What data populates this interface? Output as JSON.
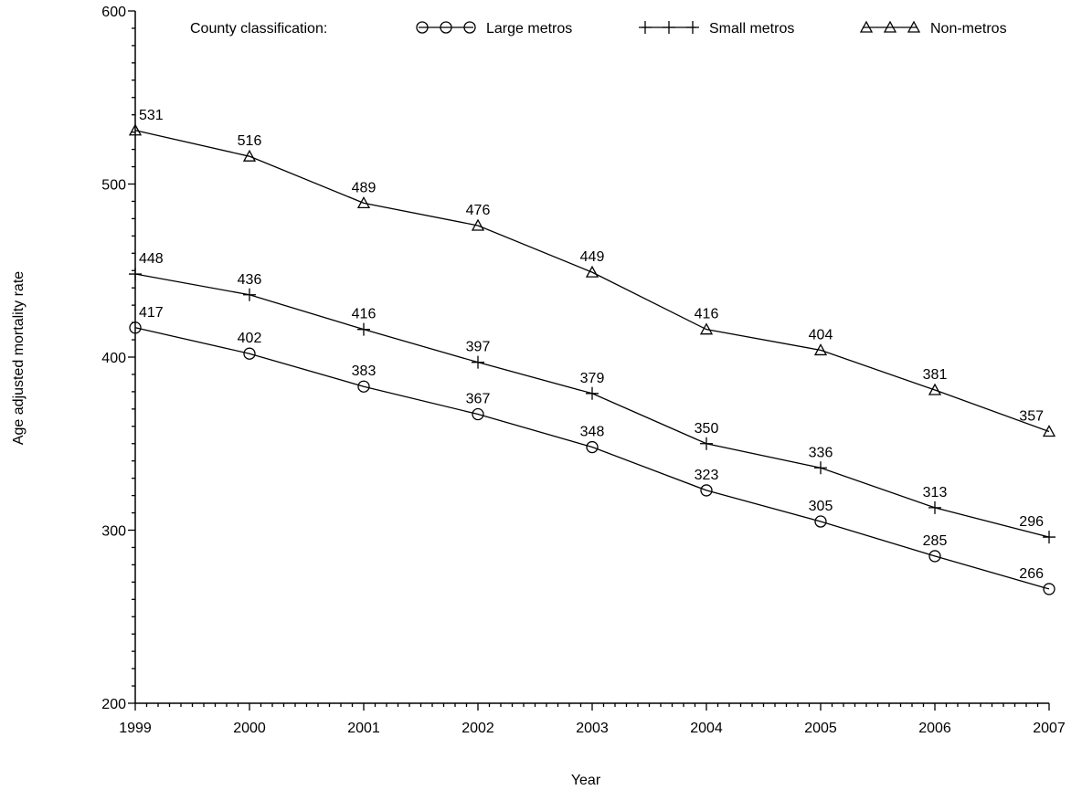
{
  "chart_data": {
    "type": "line",
    "title": "",
    "xlabel": "Year",
    "ylabel": "Age adjusted mortality rate",
    "x": [
      "1999",
      "2000",
      "2001",
      "2002",
      "2003",
      "2004",
      "2005",
      "2006",
      "2007"
    ],
    "ylim": [
      200,
      600
    ],
    "yticks": [
      "200",
      "300",
      "400",
      "500",
      "600"
    ],
    "grid": false,
    "legend": {
      "title": "County classification:",
      "position": "top"
    },
    "series": [
      {
        "name": "Large metros",
        "marker": "circle",
        "values": [
          417,
          402,
          383,
          367,
          348,
          323,
          305,
          285,
          266
        ]
      },
      {
        "name": "Small metros",
        "marker": "plus",
        "values": [
          448,
          436,
          416,
          397,
          379,
          350,
          336,
          313,
          296
        ]
      },
      {
        "name": "Non-metros",
        "marker": "triangle",
        "values": [
          531,
          516,
          489,
          476,
          449,
          416,
          404,
          381,
          357
        ]
      }
    ],
    "colors": {
      "line": "#000000",
      "background": "#ffffff"
    }
  }
}
